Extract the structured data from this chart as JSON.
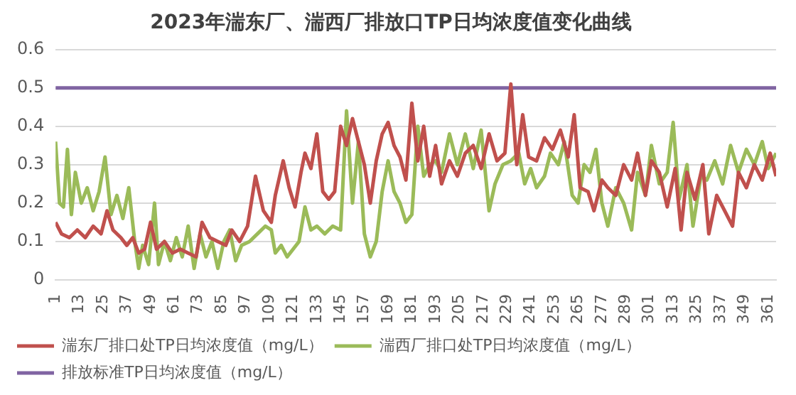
{
  "chart_data": {
    "type": "line",
    "title": "2023年湍东厂、湍西厂排放口TP日均浓度值变化曲线",
    "xlim": [
      1,
      365
    ],
    "xticks": [
      1,
      13,
      25,
      37,
      49,
      61,
      73,
      85,
      97,
      109,
      121,
      133,
      145,
      157,
      169,
      181,
      193,
      205,
      217,
      229,
      241,
      253,
      265,
      277,
      289,
      301,
      313,
      325,
      337,
      349,
      361
    ],
    "ylim": [
      0,
      0.6
    ],
    "yticks": [
      0,
      0.1,
      0.2,
      0.3,
      0.4,
      0.5,
      0.6
    ],
    "grid": "y",
    "legend": "bottom",
    "marker": "none",
    "line_style": "solid",
    "series": [
      {
        "name": "湍东厂排口处TP日均浓度值（mg/L）",
        "color": "#c0504d",
        "x": [
          1,
          4,
          8,
          12,
          16,
          20,
          24,
          27,
          30,
          34,
          37,
          40,
          43,
          46,
          49,
          52,
          56,
          60,
          64,
          68,
          72,
          75,
          79,
          83,
          87,
          90,
          94,
          98,
          102,
          106,
          110,
          112,
          116,
          119,
          122,
          125,
          127,
          130,
          133,
          136,
          139,
          142,
          145,
          148,
          151,
          154,
          157,
          160,
          163,
          166,
          169,
          172,
          175,
          178,
          181,
          184,
          187,
          190,
          193,
          196,
          200,
          204,
          208,
          212,
          216,
          220,
          224,
          228,
          231,
          234,
          237,
          240,
          244,
          248,
          252,
          256,
          260,
          263,
          266,
          270,
          273,
          277,
          280,
          284,
          288,
          292,
          295,
          299,
          302,
          306,
          310,
          314,
          317,
          320,
          324,
          328,
          331,
          335,
          339,
          343,
          346,
          350,
          354,
          358,
          362,
          365
        ],
        "values": [
          0.15,
          0.12,
          0.11,
          0.13,
          0.11,
          0.14,
          0.12,
          0.18,
          0.13,
          0.11,
          0.09,
          0.11,
          0.07,
          0.08,
          0.15,
          0.08,
          0.1,
          0.07,
          0.08,
          0.07,
          0.06,
          0.15,
          0.11,
          0.1,
          0.09,
          0.13,
          0.1,
          0.14,
          0.27,
          0.18,
          0.15,
          0.22,
          0.31,
          0.24,
          0.19,
          0.28,
          0.33,
          0.29,
          0.38,
          0.23,
          0.21,
          0.23,
          0.4,
          0.35,
          0.42,
          0.36,
          0.3,
          0.2,
          0.31,
          0.38,
          0.41,
          0.35,
          0.32,
          0.26,
          0.46,
          0.31,
          0.4,
          0.27,
          0.35,
          0.25,
          0.31,
          0.27,
          0.33,
          0.35,
          0.29,
          0.38,
          0.31,
          0.33,
          0.51,
          0.3,
          0.43,
          0.32,
          0.31,
          0.37,
          0.34,
          0.39,
          0.32,
          0.43,
          0.24,
          0.23,
          0.18,
          0.26,
          0.24,
          0.22,
          0.3,
          0.26,
          0.33,
          0.22,
          0.31,
          0.28,
          0.19,
          0.29,
          0.13,
          0.28,
          0.21,
          0.3,
          0.12,
          0.22,
          0.18,
          0.14,
          0.28,
          0.24,
          0.3,
          0.26,
          0.33,
          0.27
        ]
      },
      {
        "name": "湍西厂排口处TP日均浓度值（mg/L）",
        "color": "#9bbb59",
        "x": [
          1,
          3,
          5,
          7,
          9,
          11,
          14,
          17,
          20,
          23,
          26,
          29,
          32,
          35,
          38,
          41,
          43,
          45,
          48,
          51,
          53,
          56,
          59,
          62,
          65,
          68,
          71,
          74,
          77,
          80,
          83,
          86,
          89,
          92,
          95,
          99,
          103,
          107,
          110,
          112,
          115,
          118,
          121,
          124,
          127,
          130,
          133,
          137,
          141,
          145,
          148,
          151,
          154,
          157,
          160,
          163,
          166,
          169,
          172,
          175,
          178,
          181,
          184,
          187,
          190,
          193,
          196,
          200,
          204,
          208,
          212,
          216,
          220,
          223,
          227,
          231,
          235,
          238,
          241,
          244,
          248,
          251,
          255,
          258,
          262,
          265,
          268,
          271,
          274,
          277,
          280,
          284,
          288,
          292,
          295,
          299,
          302,
          306,
          310,
          313,
          316,
          320,
          323,
          327,
          330,
          334,
          338,
          342,
          346,
          350,
          354,
          358,
          361,
          365
        ],
        "values": [
          0.36,
          0.2,
          0.19,
          0.34,
          0.17,
          0.28,
          0.2,
          0.24,
          0.18,
          0.23,
          0.32,
          0.17,
          0.22,
          0.16,
          0.24,
          0.1,
          0.03,
          0.09,
          0.04,
          0.2,
          0.04,
          0.1,
          0.05,
          0.11,
          0.06,
          0.14,
          0.03,
          0.12,
          0.06,
          0.1,
          0.03,
          0.1,
          0.13,
          0.05,
          0.09,
          0.1,
          0.12,
          0.14,
          0.13,
          0.07,
          0.09,
          0.06,
          0.08,
          0.1,
          0.19,
          0.13,
          0.14,
          0.12,
          0.14,
          0.13,
          0.44,
          0.2,
          0.36,
          0.12,
          0.06,
          0.1,
          0.23,
          0.31,
          0.23,
          0.2,
          0.15,
          0.17,
          0.4,
          0.27,
          0.3,
          0.31,
          0.28,
          0.38,
          0.3,
          0.38,
          0.29,
          0.39,
          0.18,
          0.25,
          0.3,
          0.31,
          0.33,
          0.25,
          0.29,
          0.24,
          0.27,
          0.33,
          0.3,
          0.36,
          0.22,
          0.2,
          0.3,
          0.28,
          0.34,
          0.2,
          0.14,
          0.24,
          0.2,
          0.13,
          0.28,
          0.22,
          0.35,
          0.25,
          0.28,
          0.41,
          0.21,
          0.3,
          0.14,
          0.27,
          0.26,
          0.31,
          0.25,
          0.35,
          0.28,
          0.34,
          0.3,
          0.36,
          0.29,
          0.33
        ]
      },
      {
        "name": "排放标准TP日均浓度值（mg/L）",
        "color": "#8064a2",
        "x": [
          1,
          365
        ],
        "values": [
          0.5,
          0.5
        ]
      }
    ]
  }
}
